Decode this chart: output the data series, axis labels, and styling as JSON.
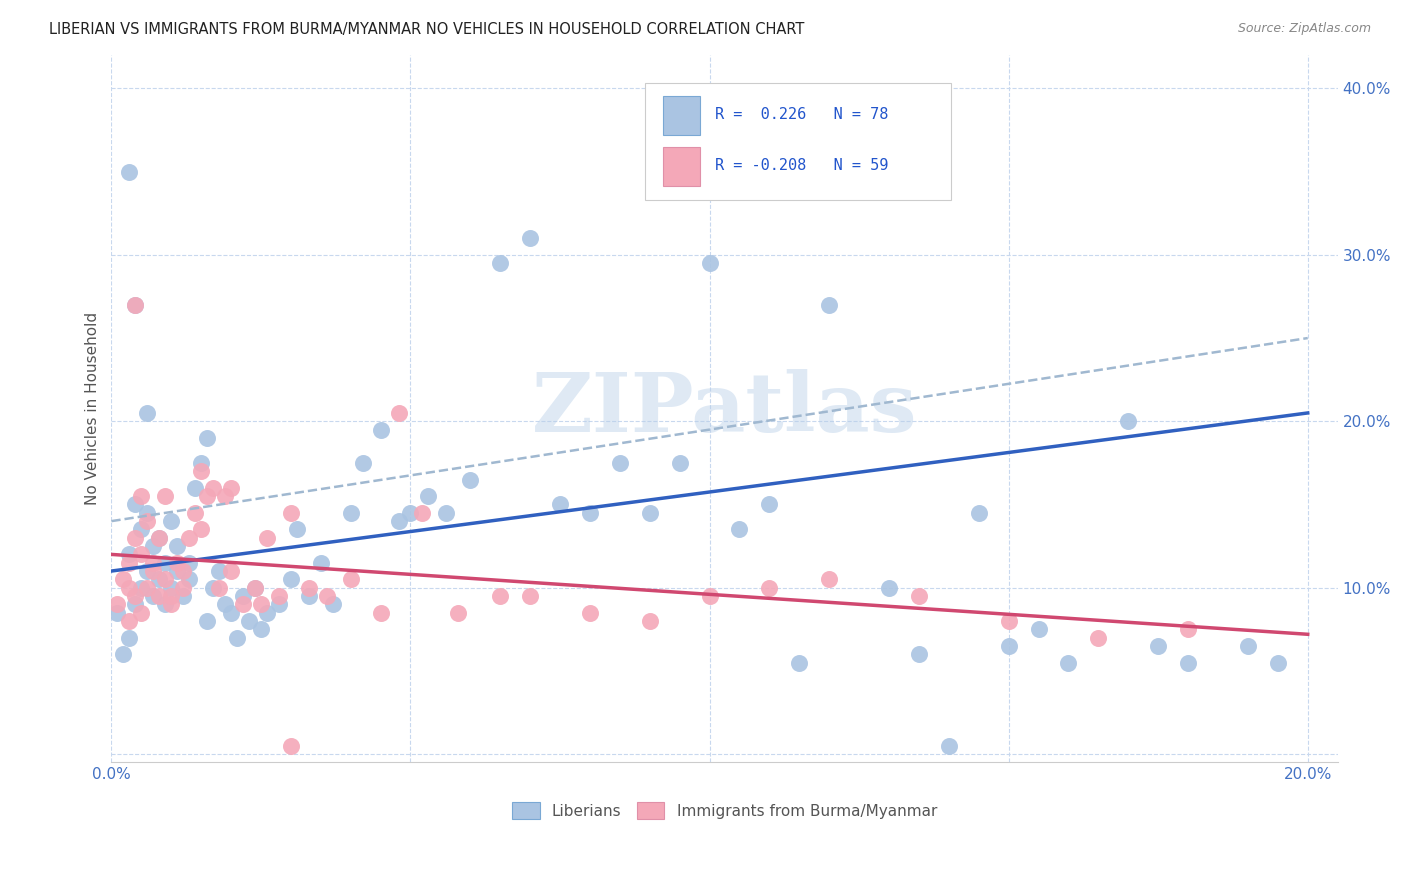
{
  "title": "LIBERIAN VS IMMIGRANTS FROM BURMA/MYANMAR NO VEHICLES IN HOUSEHOLD CORRELATION CHART",
  "source": "Source: ZipAtlas.com",
  "ylabel": "No Vehicles in Household",
  "xlim": [
    0.0,
    0.205
  ],
  "ylim": [
    -0.005,
    0.42
  ],
  "xticks": [
    0.0,
    0.05,
    0.1,
    0.15,
    0.2
  ],
  "xticklabels": [
    "0.0%",
    "",
    "",
    "",
    "20.0%"
  ],
  "yticks": [
    0.0,
    0.1,
    0.2,
    0.3,
    0.4
  ],
  "yticklabels": [
    "",
    "10.0%",
    "20.0%",
    "30.0%",
    "40.0%"
  ],
  "legend_labels": [
    "Liberians",
    "Immigrants from Burma/Myanmar"
  ],
  "color_blue": "#aac4e2",
  "color_pink": "#f4a8b8",
  "line_blue": "#3060c0",
  "line_pink": "#d04870",
  "line_dash": "#a0b8d0",
  "watermark": "ZIPatlas",
  "blue_scatter_x": [
    0.001,
    0.002,
    0.003,
    0.003,
    0.004,
    0.004,
    0.005,
    0.005,
    0.006,
    0.006,
    0.007,
    0.007,
    0.008,
    0.008,
    0.009,
    0.009,
    0.01,
    0.01,
    0.011,
    0.011,
    0.012,
    0.013,
    0.013,
    0.014,
    0.015,
    0.016,
    0.016,
    0.017,
    0.018,
    0.019,
    0.02,
    0.021,
    0.022,
    0.023,
    0.024,
    0.025,
    0.026,
    0.028,
    0.03,
    0.031,
    0.033,
    0.035,
    0.037,
    0.04,
    0.042,
    0.045,
    0.048,
    0.05,
    0.053,
    0.056,
    0.06,
    0.065,
    0.07,
    0.075,
    0.08,
    0.085,
    0.09,
    0.095,
    0.1,
    0.105,
    0.11,
    0.115,
    0.12,
    0.13,
    0.135,
    0.14,
    0.145,
    0.15,
    0.155,
    0.16,
    0.17,
    0.175,
    0.18,
    0.19,
    0.195,
    0.003,
    0.004,
    0.006
  ],
  "blue_scatter_y": [
    0.085,
    0.06,
    0.07,
    0.12,
    0.09,
    0.15,
    0.1,
    0.135,
    0.11,
    0.145,
    0.095,
    0.125,
    0.105,
    0.13,
    0.09,
    0.115,
    0.1,
    0.14,
    0.11,
    0.125,
    0.095,
    0.105,
    0.115,
    0.16,
    0.175,
    0.19,
    0.08,
    0.1,
    0.11,
    0.09,
    0.085,
    0.07,
    0.095,
    0.08,
    0.1,
    0.075,
    0.085,
    0.09,
    0.105,
    0.135,
    0.095,
    0.115,
    0.09,
    0.145,
    0.175,
    0.195,
    0.14,
    0.145,
    0.155,
    0.145,
    0.165,
    0.295,
    0.31,
    0.15,
    0.145,
    0.175,
    0.145,
    0.175,
    0.295,
    0.135,
    0.15,
    0.055,
    0.27,
    0.1,
    0.06,
    0.005,
    0.145,
    0.065,
    0.075,
    0.055,
    0.2,
    0.065,
    0.055,
    0.065,
    0.055,
    0.35,
    0.27,
    0.205
  ],
  "pink_scatter_x": [
    0.001,
    0.002,
    0.003,
    0.003,
    0.004,
    0.004,
    0.005,
    0.005,
    0.006,
    0.007,
    0.008,
    0.009,
    0.01,
    0.011,
    0.012,
    0.013,
    0.014,
    0.015,
    0.016,
    0.017,
    0.018,
    0.019,
    0.02,
    0.022,
    0.024,
    0.026,
    0.028,
    0.03,
    0.033,
    0.036,
    0.04,
    0.045,
    0.048,
    0.052,
    0.058,
    0.065,
    0.07,
    0.08,
    0.09,
    0.1,
    0.11,
    0.12,
    0.135,
    0.15,
    0.165,
    0.18,
    0.003,
    0.004,
    0.005,
    0.006,
    0.007,
    0.008,
    0.009,
    0.01,
    0.012,
    0.015,
    0.02,
    0.025,
    0.03
  ],
  "pink_scatter_y": [
    0.09,
    0.105,
    0.08,
    0.115,
    0.095,
    0.13,
    0.085,
    0.12,
    0.1,
    0.11,
    0.095,
    0.105,
    0.09,
    0.115,
    0.1,
    0.13,
    0.145,
    0.17,
    0.155,
    0.16,
    0.1,
    0.155,
    0.11,
    0.09,
    0.1,
    0.13,
    0.095,
    0.145,
    0.1,
    0.095,
    0.105,
    0.085,
    0.205,
    0.145,
    0.085,
    0.095,
    0.095,
    0.085,
    0.08,
    0.095,
    0.1,
    0.105,
    0.095,
    0.08,
    0.07,
    0.075,
    0.1,
    0.27,
    0.155,
    0.14,
    0.115,
    0.13,
    0.155,
    0.095,
    0.11,
    0.135,
    0.16,
    0.09,
    0.005
  ],
  "blue_trend_x": [
    0.0,
    0.2
  ],
  "blue_trend_y": [
    0.11,
    0.205
  ],
  "pink_trend_x": [
    0.0,
    0.2
  ],
  "pink_trend_y": [
    0.12,
    0.072
  ],
  "dash_trend_x": [
    0.0,
    0.2
  ],
  "dash_trend_y": [
    0.14,
    0.25
  ]
}
